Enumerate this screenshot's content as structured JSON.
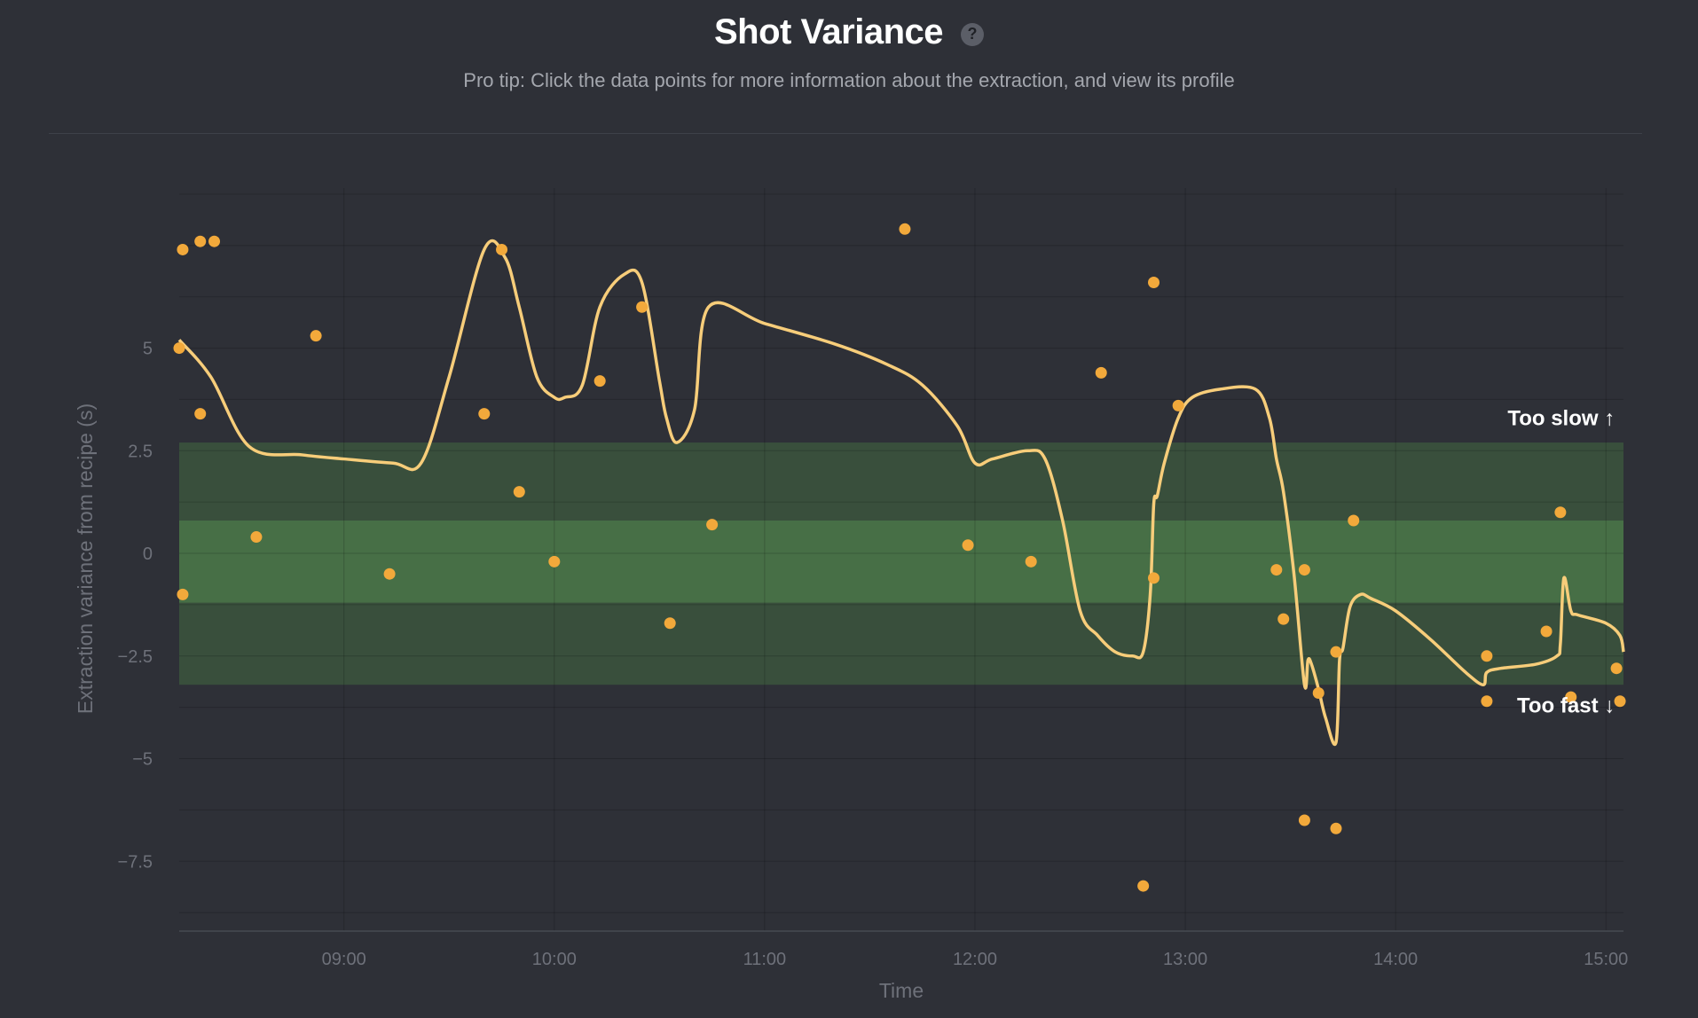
{
  "header": {
    "title": "Shot Variance",
    "help_icon": "question-icon",
    "subtitle": "Pro tip: Click the data points for more information about the extraction, and view its profile"
  },
  "colors": {
    "background": "#2e3037",
    "point": "#f2a93b",
    "trend_line": "#f7cd7a",
    "band_outer": "#3d5a3f",
    "band_inner": "#4c7a4a",
    "grid": "#3b3e45"
  },
  "chart_data": {
    "type": "scatter",
    "title": "Shot Variance",
    "xlabel": "Time",
    "ylabel": "Extraction variance from recipe (s)",
    "x_ticks": [
      "09:00",
      "10:00",
      "11:00",
      "12:00",
      "13:00",
      "14:00",
      "15:00"
    ],
    "y_ticks": [
      5,
      2.5,
      0,
      -2.5,
      -5,
      -7.5
    ],
    "y_tick_labels": [
      "5",
      "2.5",
      "0",
      "−2.5",
      "−5",
      "−7.5"
    ],
    "xlim": [
      "08:13",
      "15:05"
    ],
    "ylim": [
      -9.2,
      8.9
    ],
    "grid": true,
    "bands": [
      {
        "from": -3.2,
        "to": 2.7,
        "level": "outer"
      },
      {
        "from": -1.2,
        "to": 0.8,
        "level": "inner"
      }
    ],
    "annotations": [
      {
        "text": "Too slow ↑",
        "x": "15:00",
        "y": 3.3
      },
      {
        "text": "Too fast ↓",
        "x": "15:00",
        "y": -3.7
      }
    ],
    "series": [
      {
        "kind": "points",
        "x": [
          "08:13",
          "08:14",
          "08:14",
          "08:19",
          "08:19",
          "08:23",
          "08:35",
          "08:52",
          "09:13",
          "09:40",
          "09:45",
          "09:50",
          "10:00",
          "10:13",
          "10:25",
          "10:33",
          "10:45",
          "11:40",
          "11:58",
          "12:16",
          "12:36",
          "12:48",
          "12:51",
          "12:51",
          "12:58",
          "13:26",
          "13:28",
          "13:34",
          "13:34",
          "13:38",
          "13:43",
          "13:43",
          "13:48",
          "14:26",
          "14:26",
          "14:43",
          "14:47",
          "14:50",
          "15:03",
          "15:04"
        ],
        "y": [
          5.0,
          -1.0,
          7.4,
          3.4,
          7.6,
          7.6,
          0.4,
          5.3,
          -0.5,
          3.4,
          7.4,
          1.5,
          -0.2,
          4.2,
          6.0,
          -1.7,
          0.7,
          7.9,
          0.2,
          -0.2,
          4.4,
          -8.1,
          6.6,
          -0.6,
          3.6,
          -0.4,
          -1.6,
          -0.4,
          -6.5,
          -3.4,
          -2.4,
          -6.7,
          0.8,
          -2.5,
          -3.6,
          -1.9,
          1.0,
          -3.5,
          -2.8,
          -3.6
        ]
      },
      {
        "kind": "trend",
        "x": [
          "08:13",
          "08:22",
          "08:33",
          "08:48",
          "09:00",
          "09:14",
          "09:22",
          "09:30",
          "09:40",
          "09:46",
          "09:50",
          "09:55",
          "10:00",
          "10:03",
          "10:08",
          "10:13",
          "10:20",
          "10:25",
          "10:30",
          "10:32",
          "10:35",
          "10:40",
          "10:44",
          "11:00",
          "11:20",
          "11:35",
          "11:45",
          "11:55",
          "12:00",
          "12:05",
          "12:15",
          "12:20",
          "12:25",
          "12:30",
          "12:35",
          "12:40",
          "12:45",
          "12:48",
          "12:50",
          "12:51",
          "12:52",
          "12:54",
          "12:58",
          "13:02",
          "13:10",
          "13:20",
          "13:24",
          "13:26",
          "13:28",
          "13:31",
          "13:34",
          "13:35",
          "13:36",
          "13:38",
          "13:40",
          "13:43",
          "13:44",
          "13:45",
          "13:47",
          "13:50",
          "13:53",
          "14:00",
          "14:10",
          "14:20",
          "14:25",
          "14:26",
          "14:30",
          "14:40",
          "14:46",
          "14:47",
          "14:48",
          "14:50",
          "14:52",
          "15:00",
          "15:04",
          "15:05"
        ],
        "y": [
          5.2,
          4.3,
          2.6,
          2.4,
          2.3,
          2.2,
          2.2,
          4.3,
          7.4,
          7.2,
          6.0,
          4.3,
          3.8,
          3.8,
          4.1,
          6.0,
          6.8,
          6.6,
          4.2,
          3.3,
          2.7,
          3.5,
          6.0,
          5.6,
          5.1,
          4.6,
          4.1,
          3.1,
          2.2,
          2.3,
          2.5,
          2.3,
          0.8,
          -1.4,
          -2.0,
          -2.4,
          -2.5,
          -2.4,
          -1.0,
          1.2,
          1.4,
          2.2,
          3.3,
          3.8,
          4.0,
          4.0,
          3.3,
          2.3,
          1.5,
          -0.5,
          -3.2,
          -2.6,
          -2.7,
          -3.3,
          -4.0,
          -4.6,
          -2.6,
          -2.3,
          -1.3,
          -1.0,
          -1.1,
          -1.4,
          -2.1,
          -2.9,
          -3.2,
          -2.9,
          -2.8,
          -2.7,
          -2.5,
          -2.2,
          -0.6,
          -1.4,
          -1.5,
          -1.7,
          -2.0,
          -2.4
        ]
      }
    ]
  }
}
